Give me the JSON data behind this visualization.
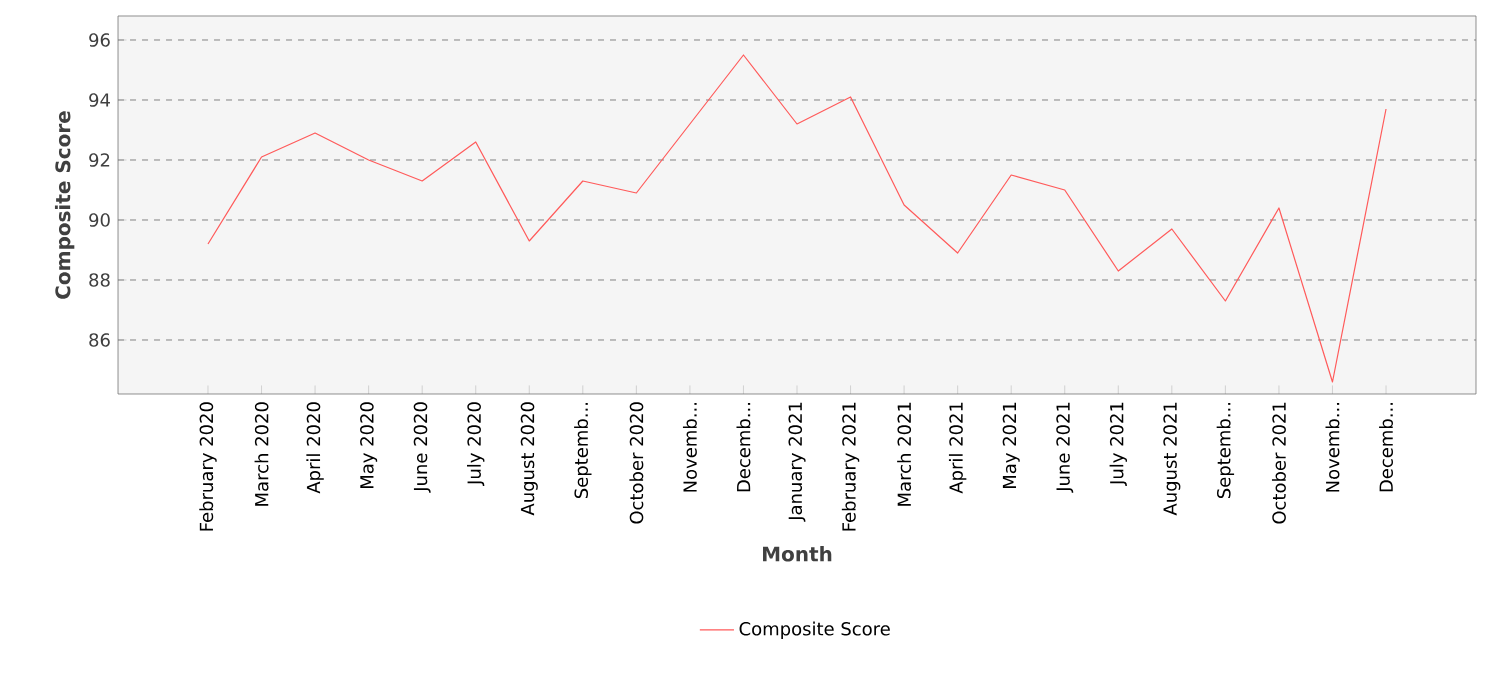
{
  "chart_data": {
    "type": "line",
    "xlabel": "Month",
    "ylabel": "Composite Score",
    "categories": [
      "February 2020",
      "March 2020",
      "April 2020",
      "May 2020",
      "June 2020",
      "July 2020",
      "August 2020",
      "Septemb...",
      "October 2020",
      "Novemb...",
      "Decemb...",
      "January 2021",
      "February 2021",
      "March 2021",
      "April 2021",
      "May 2021",
      "June 2021",
      "July 2021",
      "August 2021",
      "Septemb...",
      "October 2021",
      "Novemb...",
      "Decemb..."
    ],
    "series": [
      {
        "name": "Composite Score",
        "color": "#ff5a5a",
        "values": [
          89.2,
          92.1,
          92.9,
          92.0,
          91.3,
          92.6,
          89.3,
          91.3,
          90.9,
          93.2,
          95.5,
          93.2,
          94.1,
          90.5,
          88.9,
          91.5,
          91.0,
          88.3,
          89.7,
          87.3,
          90.4,
          84.6,
          93.7
        ]
      }
    ],
    "ylim": [
      84.2,
      96.8
    ],
    "yticks": [
      86,
      88,
      90,
      92,
      94,
      96
    ],
    "grid": "y",
    "legend": "bottom",
    "marker": "none",
    "line_style": "solid"
  }
}
